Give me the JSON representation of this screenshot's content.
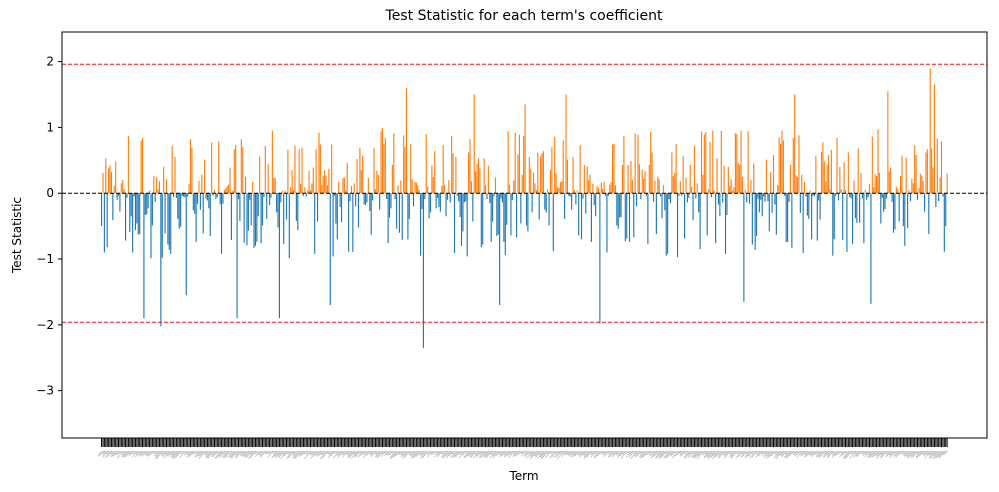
{
  "chart_data": {
    "type": "bar",
    "title": "Test Statistic for each term's coefficient",
    "xlabel": "Term",
    "ylabel": "Test Statistic",
    "ylim": [
      -3.72,
      2.45
    ],
    "yticks": [
      2,
      1,
      0,
      -1,
      -2,
      -3
    ],
    "ytick_labels": [
      "2",
      "1",
      "0",
      "−1",
      "−2",
      "−3"
    ],
    "n_terms": 600,
    "term_labels_legible": false,
    "grid": false,
    "legend": "none",
    "reference_lines": [
      {
        "y": 1.96,
        "color": "#e41a1c",
        "style": "dashed"
      },
      {
        "y": 0,
        "color": "#000000",
        "style": "dashed"
      },
      {
        "y": -1.96,
        "color": "#e41a1c",
        "style": "dashed"
      }
    ],
    "colors": {
      "positive": "#ff7f0e",
      "negative": "#1f77b4",
      "reference": "#e41a1c",
      "zero": "#000000"
    },
    "notable_values": [
      {
        "position": 0.05,
        "value": -1.9
      },
      {
        "position": 0.07,
        "value": -2.02
      },
      {
        "position": 0.1,
        "value": -1.55
      },
      {
        "position": 0.16,
        "value": -1.9
      },
      {
        "position": 0.21,
        "value": -1.9
      },
      {
        "position": 0.27,
        "value": -1.7
      },
      {
        "position": 0.36,
        "value": 1.6
      },
      {
        "position": 0.38,
        "value": -2.35
      },
      {
        "position": 0.44,
        "value": 1.5
      },
      {
        "position": 0.47,
        "value": -1.7
      },
      {
        "position": 0.5,
        "value": 1.35
      },
      {
        "position": 0.55,
        "value": 1.5
      },
      {
        "position": 0.59,
        "value": -1.98
      },
      {
        "position": 0.76,
        "value": -1.65
      },
      {
        "position": 0.82,
        "value": 1.5
      },
      {
        "position": 0.91,
        "value": -1.68
      },
      {
        "position": 0.93,
        "value": 1.55
      },
      {
        "position": 0.98,
        "value": 1.9
      },
      {
        "position": 0.985,
        "value": 1.65
      }
    ]
  }
}
